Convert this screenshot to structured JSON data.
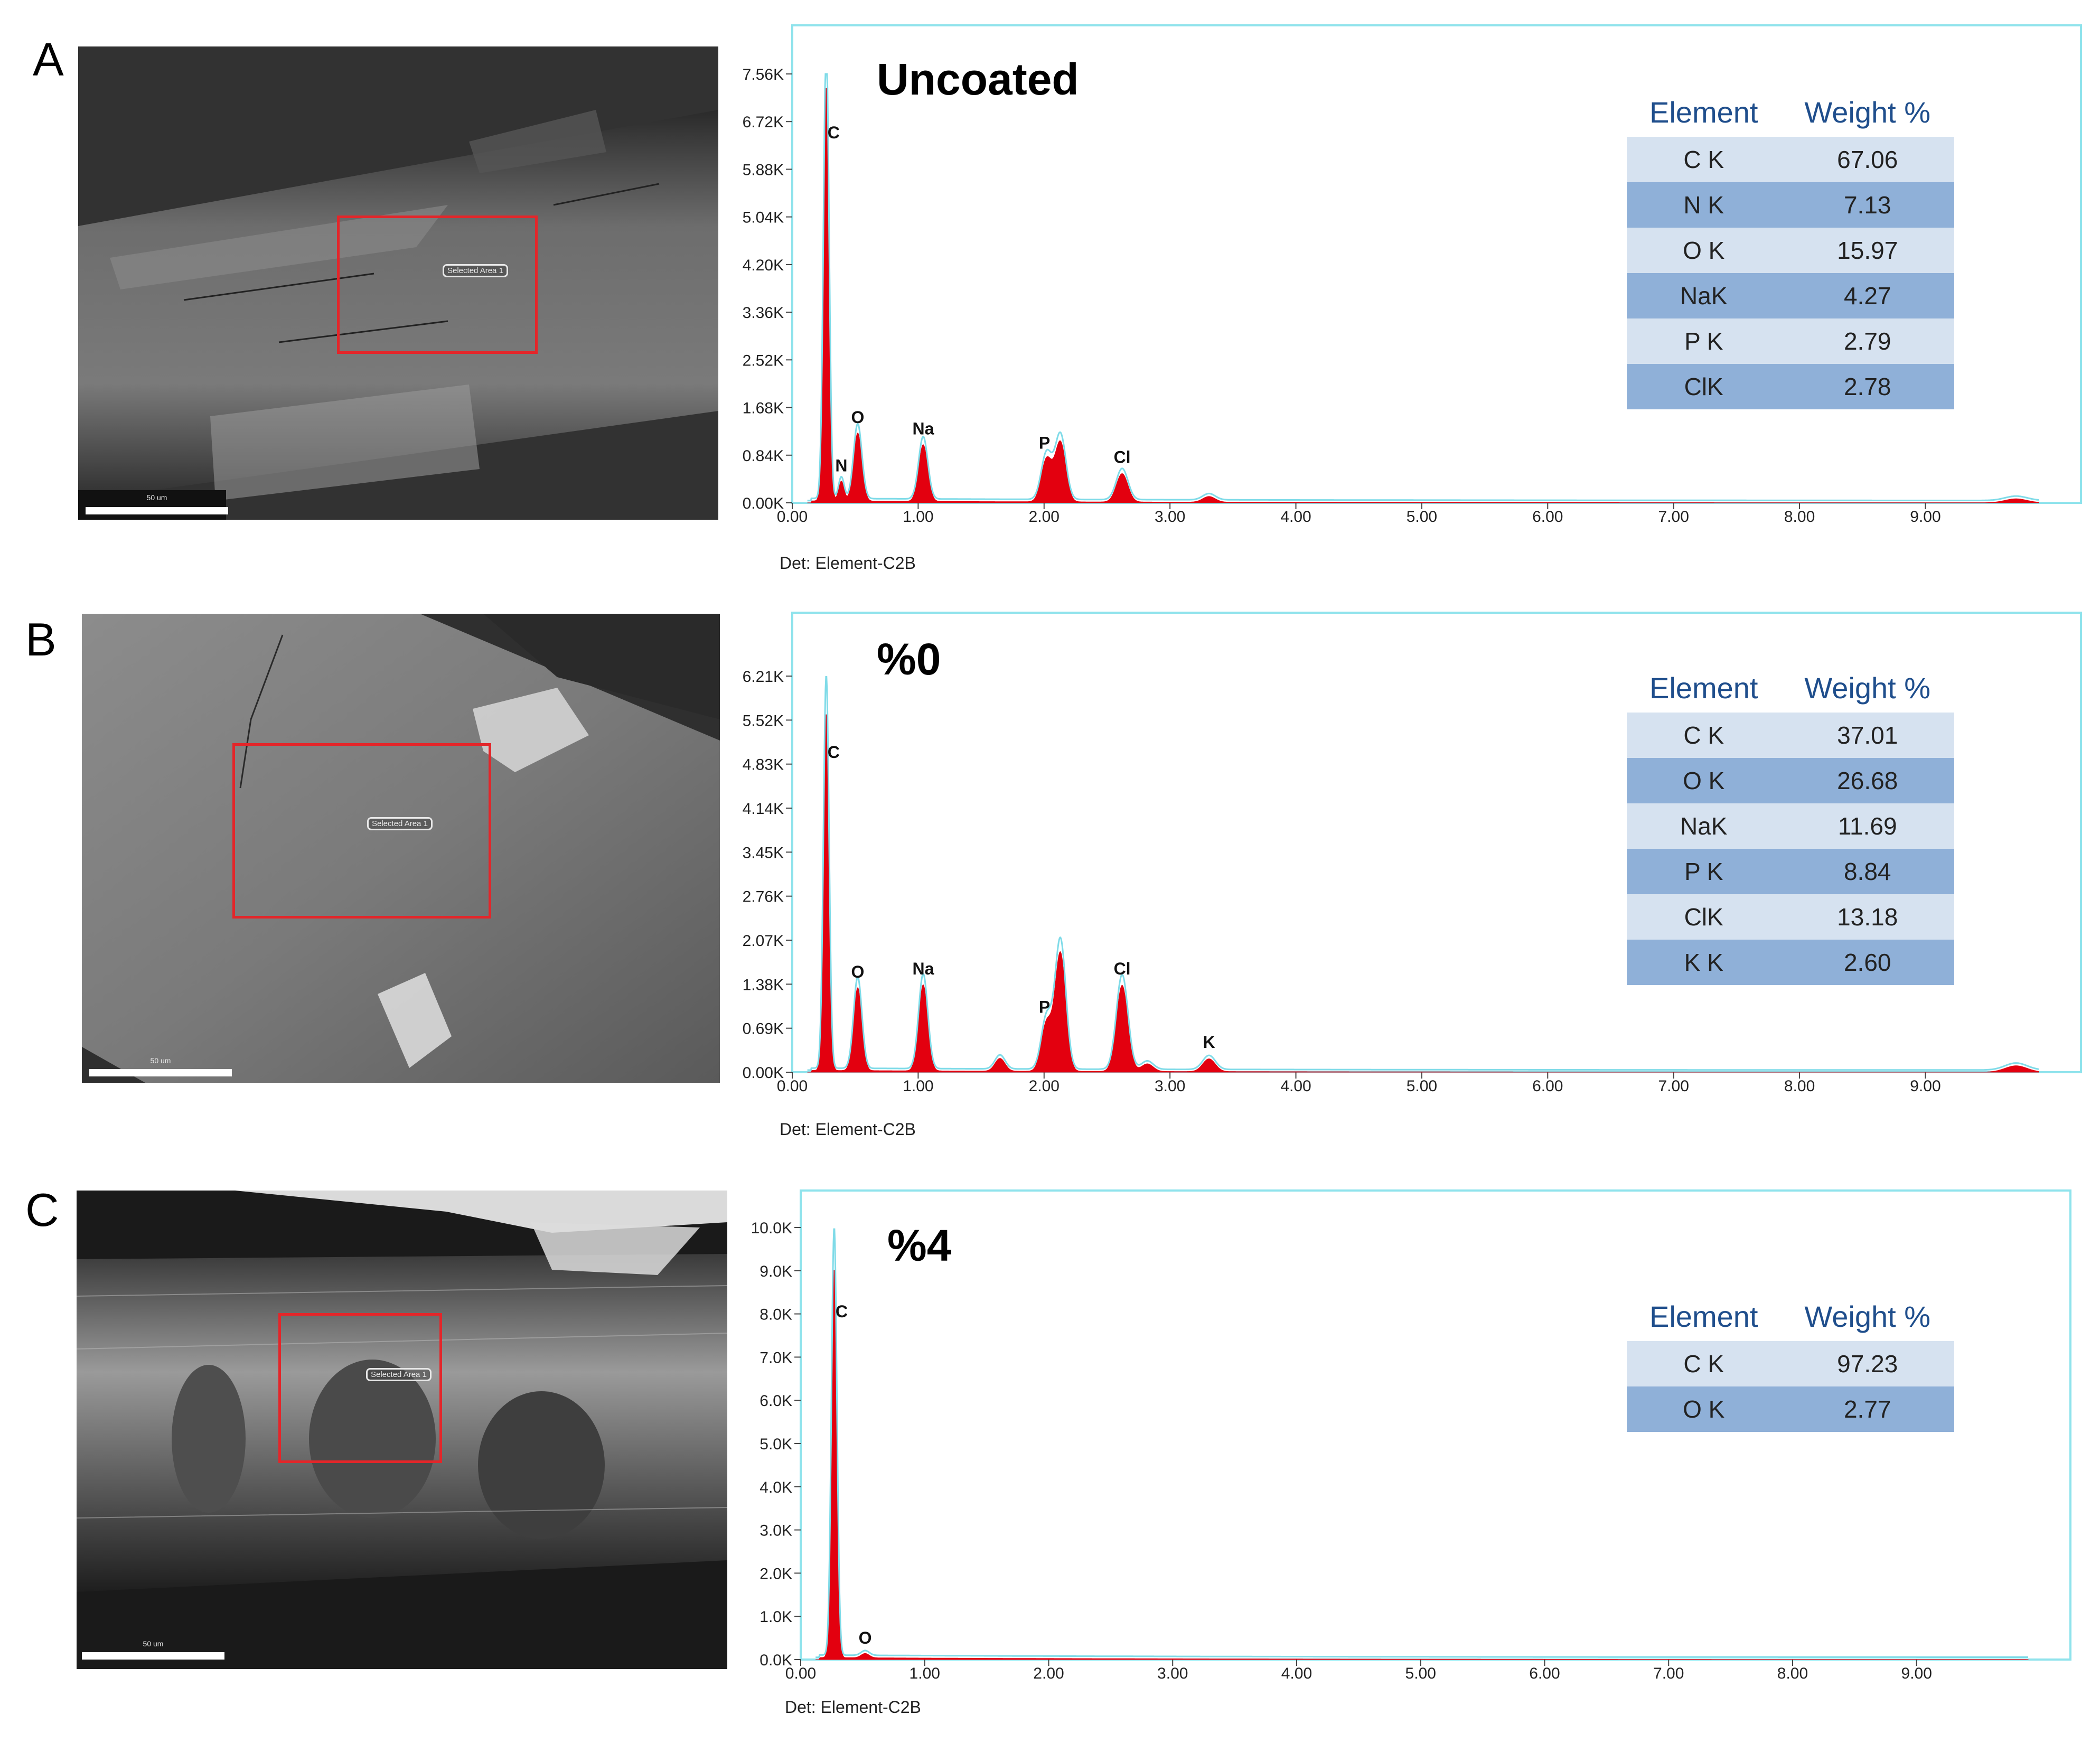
{
  "panels": [
    {
      "letter": "A",
      "sem": {
        "selection_label": "Selected Area 1",
        "scale_label": "50 um"
      },
      "title": "Uncoated",
      "detector": "Det: Element-C2B",
      "table": {
        "headers": [
          "Element",
          "Weight %"
        ],
        "rows": [
          [
            "C K",
            "67.06"
          ],
          [
            "N K",
            "7.13"
          ],
          [
            "O K",
            "15.97"
          ],
          [
            "NaK",
            "4.27"
          ],
          [
            "P K",
            "2.79"
          ],
          [
            "ClK",
            "2.78"
          ]
        ]
      }
    },
    {
      "letter": "B",
      "sem": {
        "selection_label": "Selected Area 1",
        "scale_label": "50 um"
      },
      "title": "%0",
      "detector": "Det: Element-C2B",
      "table": {
        "headers": [
          "Element",
          "Weight %"
        ],
        "rows": [
          [
            "C K",
            "37.01"
          ],
          [
            "O K",
            "26.68"
          ],
          [
            "NaK",
            "11.69"
          ],
          [
            "P K",
            "8.84"
          ],
          [
            "ClK",
            "13.18"
          ],
          [
            "K K",
            "2.60"
          ]
        ]
      }
    },
    {
      "letter": "C",
      "sem": {
        "selection_label": "Selected Area 1",
        "scale_label": "50 um"
      },
      "title": "%4",
      "detector": "Det: Element-C2B",
      "table": {
        "headers": [
          "Element",
          "Weight %"
        ],
        "rows": [
          [
            "C K",
            "97.23"
          ],
          [
            "O K",
            "2.77"
          ]
        ]
      }
    }
  ],
  "colors": {
    "spectrum_fill": "#e3000f",
    "spectrum_overlay": "#7fdbe8",
    "frame": "#8fe3ec",
    "table_light": "#d6e2f0",
    "table_dark": "#8fb0d8",
    "header_text": "#1f4e8c"
  },
  "chart_data": [
    {
      "type": "area",
      "xlim": [
        0,
        9.9
      ],
      "ylim": [
        0,
        7.56
      ],
      "x_ticks": [
        "0.00",
        "1.00",
        "2.00",
        "3.00",
        "4.00",
        "5.00",
        "6.00",
        "7.00",
        "8.00",
        "9.00"
      ],
      "y_ticks": [
        "0.00K",
        "0.84K",
        "1.68K",
        "2.52K",
        "3.36K",
        "4.20K",
        "5.04K",
        "5.88K",
        "6.72K",
        "7.56K"
      ],
      "peaks": [
        {
          "label": "C",
          "x": 0.27,
          "y": 7.3
        },
        {
          "label": "N",
          "x": 0.39,
          "y": 0.35
        },
        {
          "label": "O",
          "x": 0.52,
          "y": 1.2
        },
        {
          "label": "Na",
          "x": 1.04,
          "y": 1.0
        },
        {
          "label": "P",
          "x": 2.02,
          "y": 0.75
        },
        {
          "label": "",
          "x": 2.13,
          "y": 1.05
        },
        {
          "label": "Cl",
          "x": 2.62,
          "y": 0.5
        }
      ],
      "minor_peaks": [
        {
          "x": 3.31,
          "y": 0.1
        },
        {
          "x": 9.72,
          "y": 0.07
        }
      ]
    },
    {
      "type": "area",
      "xlim": [
        0,
        9.9
      ],
      "ylim": [
        0,
        6.21
      ],
      "x_ticks": [
        "0.00",
        "1.00",
        "2.00",
        "3.00",
        "4.00",
        "5.00",
        "6.00",
        "7.00",
        "8.00",
        "9.00"
      ],
      "y_ticks": [
        "0.00K",
        "0.69K",
        "1.38K",
        "2.07K",
        "2.76K",
        "3.45K",
        "4.14K",
        "4.83K",
        "5.52K",
        "6.21K"
      ],
      "peaks": [
        {
          "label": "C",
          "x": 0.27,
          "y": 5.6
        },
        {
          "label": "O",
          "x": 0.52,
          "y": 1.3
        },
        {
          "label": "Na",
          "x": 1.04,
          "y": 1.35
        },
        {
          "label": "P",
          "x": 2.02,
          "y": 0.75
        },
        {
          "label": "",
          "x": 2.13,
          "y": 1.85
        },
        {
          "label": "Cl",
          "x": 2.62,
          "y": 1.35
        },
        {
          "label": "K",
          "x": 3.31,
          "y": 0.2
        }
      ],
      "minor_peaks": [
        {
          "x": 1.65,
          "y": 0.2
        },
        {
          "x": 2.82,
          "y": 0.12
        },
        {
          "x": 9.72,
          "y": 0.1
        }
      ]
    },
    {
      "type": "area",
      "xlim": [
        0,
        9.9
      ],
      "ylim": [
        0,
        10.0
      ],
      "x_ticks": [
        "0.00",
        "1.00",
        "2.00",
        "3.00",
        "4.00",
        "5.00",
        "6.00",
        "7.00",
        "8.00",
        "9.00"
      ],
      "y_ticks": [
        "0.0K",
        "1.0K",
        "2.0K",
        "3.0K",
        "4.0K",
        "5.0K",
        "6.0K",
        "7.0K",
        "8.0K",
        "9.0K",
        "10.0K"
      ],
      "peaks": [
        {
          "label": "C",
          "x": 0.27,
          "y": 9.0
        },
        {
          "label": "O",
          "x": 0.52,
          "y": 0.1
        }
      ],
      "minor_peaks": []
    }
  ]
}
